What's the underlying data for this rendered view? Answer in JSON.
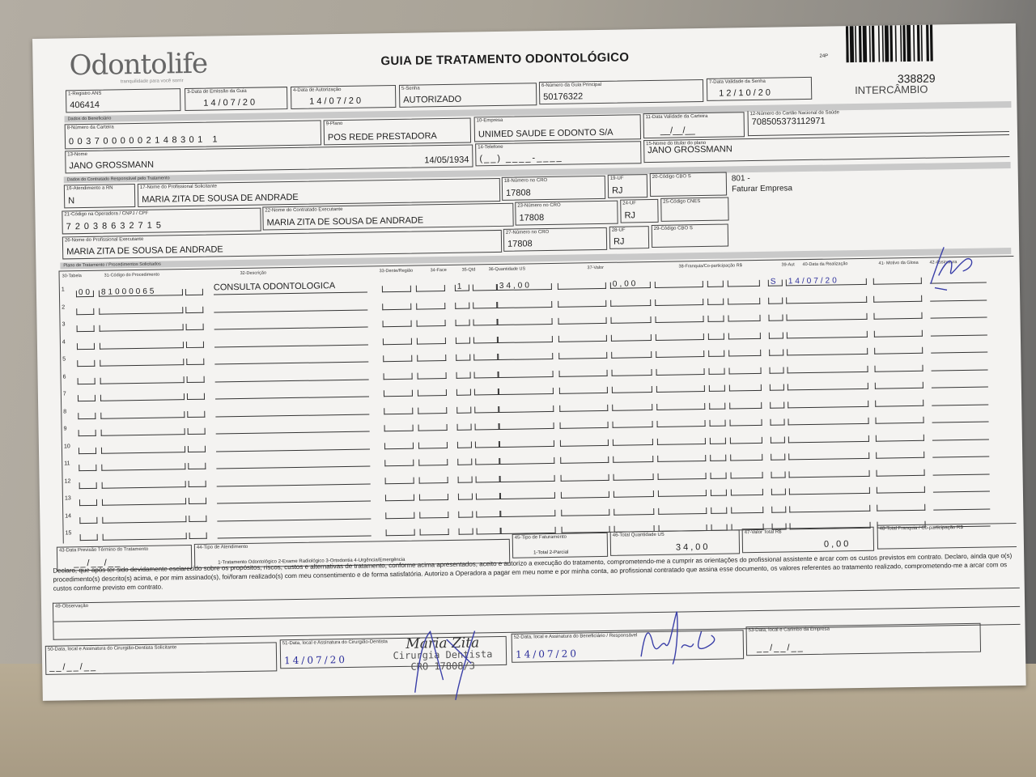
{
  "header": {
    "logo_text": "Odontolife",
    "logo_tagline": "tranquilidade para você sorrir",
    "title": "GUIA DE TRATAMENTO ODONTOLÓGICO",
    "form_code": "24P",
    "guide_number": "338829",
    "type": "INTERCÂMBIO"
  },
  "sections": {
    "beneficiary": "Dados do Beneficiário",
    "contractor": "Dados do Contratado Responsável pelo Tratamento",
    "plan": "Plano de Tratamento / Procedimentos Solicitados"
  },
  "fields": {
    "f1": {
      "label": "1-Registro ANS",
      "value": "406414"
    },
    "f3": {
      "label": "3-Data de Emissão da Guia",
      "value": "14/07/20"
    },
    "f4": {
      "label": "4-Data de Autorização",
      "value": "14/07/20"
    },
    "f5": {
      "label": "5-Senha",
      "value": "AUTORIZADO"
    },
    "f6": {
      "label": "6-Número da Guia Principal",
      "value": "50176322"
    },
    "f7": {
      "label": "7-Data Validade da Senha",
      "value": "12/10/20"
    },
    "f8": {
      "label": "8-Número da Carteira",
      "value": "0037000002148301 1"
    },
    "f9": {
      "label": "9-Plano",
      "value": "POS REDE PRESTADORA"
    },
    "f10": {
      "label": "10-Empresa",
      "value": "UNIMED SAUDE E ODONTO S/A"
    },
    "f11": {
      "label": "11-Data Validade da Carteira",
      "value": "__/__/__"
    },
    "f12": {
      "label": "12-Número do Cartão Nacional de Saúde",
      "value": "708505373112971"
    },
    "f13": {
      "label": "13-Nome",
      "value": "JANO GROSSMANN",
      "birth": "14/05/1934"
    },
    "f14": {
      "label": "14-Telefone",
      "value": "(__) ____-____"
    },
    "f15": {
      "label": "15-Nome do titular do plano",
      "value": "JANO GROSSMANN"
    },
    "f16": {
      "label": "16-Atendimento a RN",
      "value": "N"
    },
    "f17": {
      "label": "17-Nome do Profissional Solicitante",
      "value": "MARIA ZITA DE SOUSA DE ANDRADE"
    },
    "f18": {
      "label": "18-Número no CRO",
      "value": "17808"
    },
    "f19": {
      "label": "19-UF",
      "value": "RJ"
    },
    "f20": {
      "label": "20-Código CBO S",
      "value": ""
    },
    "f20_note": {
      "code": "801 -",
      "text": "Faturar Empresa"
    },
    "f21": {
      "label": "21-Código na Operadora / CNPJ / CPF",
      "value": "72038632715"
    },
    "f22": {
      "label": "22-Nome do Contratado Executante",
      "value": "MARIA ZITA DE SOUSA DE ANDRADE"
    },
    "f23": {
      "label": "23-Número no CRO",
      "value": "17808"
    },
    "f24": {
      "label": "24-UF",
      "value": "RJ"
    },
    "f25": {
      "label": "25-Código CNES",
      "value": ""
    },
    "f26": {
      "label": "26-Nome do Profissional Executante",
      "value": "MARIA ZITA DE SOUSA DE ANDRADE"
    },
    "f27": {
      "label": "27-Número no CRO",
      "value": "17808"
    },
    "f28": {
      "label": "28-UF",
      "value": "RJ"
    },
    "f29": {
      "label": "29-Código CBO S",
      "value": ""
    }
  },
  "table": {
    "columns": {
      "c30": "30-Tabela",
      "c31": "31-Código do Procedimento",
      "c32": "32-Descrição",
      "c33": "33-Dente/Região",
      "c34": "34-Face",
      "c35": "35-Qtd",
      "c36": "36-Quantidade US",
      "c37": "37-Valor",
      "c38": "38-Franquia/Co-participação R$",
      "c39": "39-Aut",
      "c40": "40-Data da Realização",
      "c41": "41- Motivo da Glosa",
      "c42": "42-Assinatura"
    },
    "rows": [
      {
        "n": "1",
        "tabela": "00",
        "codigo": "81000065",
        "descricao": "CONSULTA ODONTOLOGICA",
        "qtd": "1",
        "us": "34,00",
        "valor": "0,00",
        "franquia": "",
        "aut": "S",
        "data": "14/07/20"
      },
      {
        "n": "2"
      },
      {
        "n": "3"
      },
      {
        "n": "4"
      },
      {
        "n": "5"
      },
      {
        "n": "6"
      },
      {
        "n": "7"
      },
      {
        "n": "8"
      },
      {
        "n": "9"
      },
      {
        "n": "10"
      },
      {
        "n": "11"
      },
      {
        "n": "12"
      },
      {
        "n": "13"
      },
      {
        "n": "14"
      },
      {
        "n": "15"
      }
    ]
  },
  "footer": {
    "f43": {
      "label": "43-Data Previsão Término do Tratamento",
      "value": "__/__/__"
    },
    "f44": {
      "label": "44-Tipo de Atendimento",
      "options": "1-Tratamento Odontológico  2-Exame Radiológico  3-Ortodontia  4-Urgência/Emergência"
    },
    "f45": {
      "label": "45-Tipo de Faturamento",
      "options": "1-Total  2-Parcial"
    },
    "f46": {
      "label": "46-Total Quantidade US",
      "value": "34,00"
    },
    "f47": {
      "label": "47-Valor Total R$",
      "value": "0,00"
    },
    "f48": {
      "label": "48-Total Franquia / Co-participação R$",
      "value": ""
    },
    "declaration": "Declaro, que após ter sido devidamente esclarecido sobre os propósitos, riscos, custos e alternativas de tratamento, conforme acima apresentados, aceito e autorizo a execução do tratamento, comprometendo-me a cumprir as orientações do profissional assistente e arcar com os custos previstos em contrato. Declaro, ainda que o(s) procedimento(s) descrito(s) acima, e por mim assinado(s), foi/foram realizado(s) com meu consentimento e de forma satisfatória. Autorizo a Operadora a pagar em meu nome e por minha conta, ao profissional contratado que assina esse documento, os valores referentes ao tratamento realizado, comprometendo-me a arcar com os custos conforme previsto em contrato.",
    "f49": {
      "label": "49-Observação",
      "value": ""
    },
    "f50": {
      "label": "50-Data, local e Assinatura do Cirurgião-Dentista Solicitante",
      "value": "__/__/__"
    },
    "f51": {
      "label": "51-Data, local e Assinatura do Cirurgião-Dentista",
      "value": "14/07/20"
    },
    "f52": {
      "label": "52-Data, local e Assinatura do Beneficiário / Responsável",
      "value": "14/07/20"
    },
    "f53": {
      "label": "53-Data, local e Carimbo da Empresa",
      "value": "__/__/__"
    }
  },
  "stamp": {
    "name": "Maria Zita",
    "role": "Cirurgia Dentista",
    "cro": "CRO 17808/3"
  },
  "colors": {
    "ink_blue": "#2b2e9a",
    "paper": "#f4f3f1",
    "section_bar": "#c9c9c9"
  }
}
